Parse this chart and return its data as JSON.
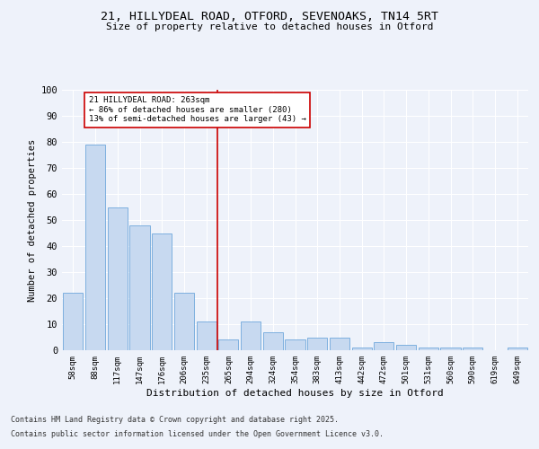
{
  "title1": "21, HILLYDEAL ROAD, OTFORD, SEVENOAKS, TN14 5RT",
  "title2": "Size of property relative to detached houses in Otford",
  "xlabel": "Distribution of detached houses by size in Otford",
  "ylabel": "Number of detached properties",
  "bins": [
    "58sqm",
    "88sqm",
    "117sqm",
    "147sqm",
    "176sqm",
    "206sqm",
    "235sqm",
    "265sqm",
    "294sqm",
    "324sqm",
    "354sqm",
    "383sqm",
    "413sqm",
    "442sqm",
    "472sqm",
    "501sqm",
    "531sqm",
    "560sqm",
    "590sqm",
    "619sqm",
    "649sqm"
  ],
  "values": [
    22,
    79,
    55,
    48,
    45,
    22,
    11,
    4,
    11,
    7,
    4,
    5,
    5,
    1,
    3,
    2,
    1,
    1,
    1,
    0,
    1
  ],
  "bar_color": "#c7d9f0",
  "bar_edgecolor": "#6fa8dc",
  "highlight_index": 7,
  "annotation_title": "21 HILLYDEAL ROAD: 263sqm",
  "annotation_line1": "← 86% of detached houses are smaller (280)",
  "annotation_line2": "13% of semi-detached houses are larger (43) →",
  "annotation_box_color": "#ffffff",
  "annotation_box_edgecolor": "#cc0000",
  "vline_color": "#cc0000",
  "ylim": [
    0,
    100
  ],
  "yticks": [
    0,
    10,
    20,
    30,
    40,
    50,
    60,
    70,
    80,
    90,
    100
  ],
  "background_color": "#eef2fa",
  "grid_color": "#ffffff",
  "footer1": "Contains HM Land Registry data © Crown copyright and database right 2025.",
  "footer2": "Contains public sector information licensed under the Open Government Licence v3.0."
}
